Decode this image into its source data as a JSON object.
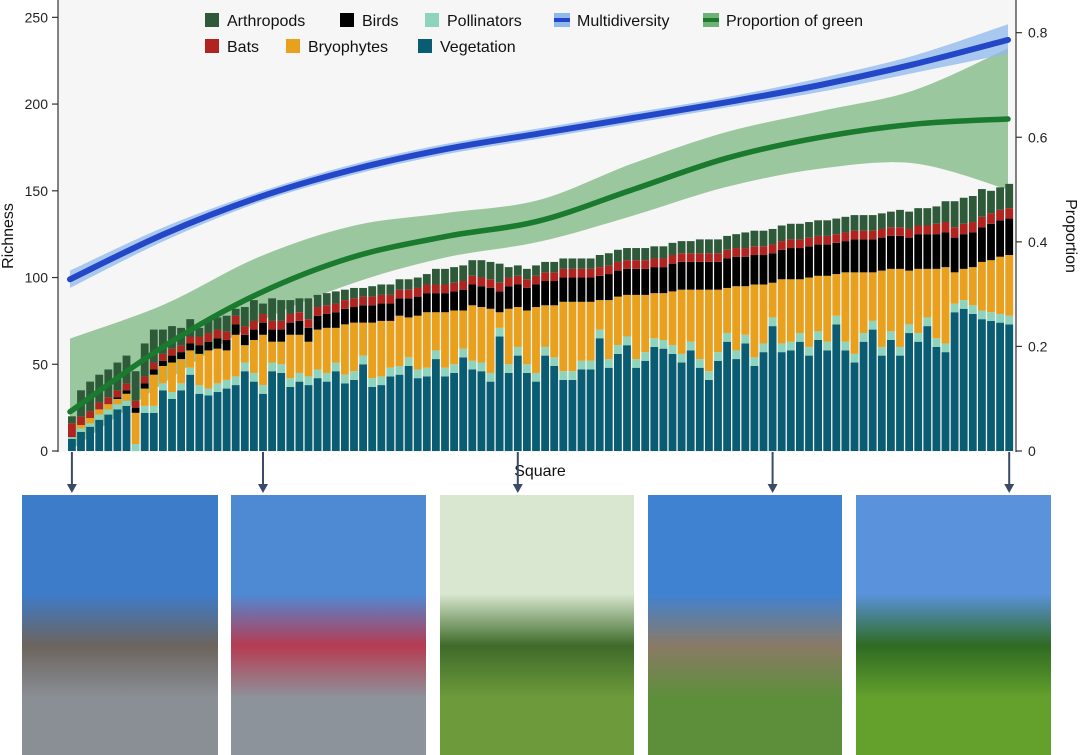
{
  "chart_data": {
    "type": "bar",
    "x_label": "Square",
    "y_label": "Richness",
    "y2_label": "Proportion",
    "y_ticks": [
      0,
      50,
      100,
      150,
      200,
      250
    ],
    "y2_ticks": [
      "0",
      "0.2",
      "0.4",
      "0.6",
      "0.8"
    ],
    "ylim": [
      0,
      260
    ],
    "y2lim": [
      0,
      0.8625
    ],
    "stack_order": [
      "Vegetation",
      "Pollinators",
      "Bryophytes",
      "Birds",
      "Bats",
      "Arthropods"
    ],
    "legend": [
      {
        "name": "Arthropods",
        "color": "#2f5a3a",
        "kind": "square"
      },
      {
        "name": "Birds",
        "color": "#000000",
        "kind": "square"
      },
      {
        "name": "Pollinators",
        "color": "#8ed4bd",
        "kind": "square"
      },
      {
        "name": "Multidiversity",
        "color": "#2447c8",
        "kind": "line"
      },
      {
        "name": "Proportion of green",
        "color": "#1a7a2e",
        "kind": "line"
      },
      {
        "name": "Bats",
        "color": "#b0231f",
        "kind": "square"
      },
      {
        "name": "Bryophytes",
        "color": "#e9a01d",
        "kind": "square"
      },
      {
        "name": "Vegetation",
        "color": "#0a5c73",
        "kind": "square"
      }
    ],
    "series": [
      {
        "name": "Vegetation",
        "color": "#0a5c73",
        "values": [
          7,
          11,
          14,
          18,
          21,
          24,
          26,
          0,
          22,
          22,
          35,
          30,
          35,
          44,
          33,
          32,
          34,
          36,
          38,
          46,
          40,
          33,
          46,
          45,
          37,
          40,
          38,
          42,
          40,
          46,
          39,
          41,
          50,
          37,
          38,
          43,
          44,
          49,
          42,
          43,
          53,
          43,
          45,
          54,
          47,
          46,
          40,
          66,
          45,
          55,
          45,
          40,
          55,
          49,
          41,
          41,
          47,
          47,
          65,
          48,
          56,
          61,
          48,
          52,
          60,
          59,
          56,
          51,
          58,
          48,
          41,
          52,
          63,
          53,
          62,
          49,
          57,
          72,
          57,
          58,
          63,
          55,
          64,
          58,
          73,
          58,
          51,
          63,
          70,
          55,
          64,
          55,
          68,
          63,
          72,
          60,
          57,
          80,
          82,
          79,
          76,
          75,
          74,
          73
        ]
      },
      {
        "name": "Pollinators",
        "color": "#8ed4bd",
        "values": [
          1,
          2,
          2,
          3,
          3,
          3,
          3,
          4,
          4,
          4,
          4,
          4,
          4,
          4,
          5,
          4,
          5,
          5,
          5,
          5,
          5,
          5,
          5,
          5,
          5,
          5,
          5,
          5,
          5,
          5,
          5,
          5,
          5,
          5,
          5,
          5,
          5,
          5,
          5,
          5,
          5,
          5,
          5,
          5,
          5,
          5,
          5,
          5,
          5,
          5,
          5,
          5,
          5,
          5,
          5,
          5,
          5,
          5,
          5,
          5,
          5,
          5,
          5,
          5,
          5,
          5,
          5,
          5,
          5,
          5,
          5,
          5,
          5,
          5,
          5,
          5,
          5,
          5,
          5,
          5,
          5,
          5,
          5,
          5,
          5,
          5,
          5,
          5,
          5,
          5,
          5,
          5,
          5,
          5,
          5,
          5,
          5,
          5,
          5,
          5,
          5,
          5,
          5,
          5
        ]
      },
      {
        "name": "Bryophytes",
        "color": "#e9a01d",
        "values": [
          0,
          2,
          3,
          3,
          3,
          3,
          4,
          18,
          10,
          18,
          10,
          17,
          14,
          10,
          18,
          22,
          20,
          17,
          24,
          10,
          19,
          29,
          12,
          13,
          25,
          22,
          20,
          23,
          26,
          20,
          29,
          28,
          19,
          32,
          32,
          27,
          29,
          23,
          31,
          32,
          22,
          32,
          31,
          22,
          32,
          32,
          37,
          9,
          32,
          23,
          31,
          38,
          24,
          30,
          40,
          40,
          34,
          34,
          17,
          34,
          28,
          24,
          37,
          33,
          26,
          27,
          31,
          37,
          30,
          40,
          47,
          36,
          26,
          37,
          28,
          42,
          34,
          20,
          37,
          36,
          31,
          40,
          32,
          38,
          24,
          40,
          47,
          35,
          28,
          44,
          36,
          45,
          31,
          37,
          28,
          40,
          44,
          18,
          18,
          22,
          28,
          30,
          33,
          35
        ]
      },
      {
        "name": "Birds",
        "color": "#000000",
        "values": [
          0,
          0,
          0,
          0,
          0,
          1,
          2,
          3,
          3,
          3,
          3,
          4,
          4,
          4,
          5,
          5,
          6,
          6,
          6,
          6,
          6,
          7,
          7,
          7,
          7,
          8,
          8,
          8,
          8,
          9,
          9,
          9,
          10,
          10,
          10,
          10,
          10,
          11,
          11,
          11,
          11,
          11,
          11,
          12,
          12,
          12,
          12,
          12,
          13,
          13,
          13,
          13,
          14,
          14,
          14,
          14,
          14,
          14,
          14,
          15,
          15,
          15,
          15,
          15,
          15,
          15,
          16,
          16,
          16,
          16,
          16,
          16,
          17,
          17,
          17,
          17,
          17,
          17,
          17,
          18,
          18,
          18,
          18,
          18,
          18,
          18,
          19,
          19,
          19,
          19,
          19,
          19,
          19,
          20,
          20,
          20,
          20,
          20,
          20,
          20,
          20,
          21,
          21,
          21
        ]
      },
      {
        "name": "Bats",
        "color": "#b0231f",
        "values": [
          8,
          5,
          4,
          4,
          4,
          4,
          4,
          4,
          4,
          4,
          4,
          4,
          4,
          4,
          5,
          5,
          5,
          5,
          5,
          5,
          5,
          5,
          5,
          5,
          5,
          5,
          5,
          5,
          5,
          5,
          5,
          5,
          5,
          5,
          5,
          5,
          5,
          5,
          5,
          5,
          5,
          5,
          5,
          5,
          5,
          5,
          5,
          5,
          5,
          5,
          5,
          5,
          5,
          5,
          5,
          5,
          5,
          5,
          5,
          5,
          5,
          5,
          5,
          5,
          5,
          5,
          5,
          5,
          5,
          5,
          5,
          5,
          5,
          5,
          5,
          5,
          5,
          5,
          5,
          5,
          5,
          5,
          5,
          5,
          5,
          5,
          5,
          5,
          5,
          5,
          5,
          5,
          5,
          5,
          5,
          6,
          6,
          6,
          6,
          6,
          6,
          6,
          6,
          6
        ]
      },
      {
        "name": "Arthropods",
        "color": "#2f5a3a",
        "values": [
          4,
          15,
          17,
          16,
          16,
          16,
          16,
          17,
          19,
          19,
          14,
          13,
          10,
          10,
          5,
          8,
          7,
          9,
          4,
          11,
          12,
          6,
          13,
          12,
          8,
          8,
          12,
          7,
          7,
          7,
          6,
          6,
          5,
          6,
          6,
          6,
          6,
          6,
          6,
          6,
          9,
          9,
          9,
          9,
          9,
          10,
          10,
          11,
          6,
          6,
          6,
          6,
          6,
          6,
          6,
          6,
          6,
          6,
          7,
          7,
          7,
          7,
          7,
          7,
          7,
          7,
          7,
          7,
          7,
          8,
          8,
          8,
          8,
          8,
          9,
          9,
          9,
          9,
          9,
          9,
          9,
          9,
          9,
          9,
          9,
          9,
          9,
          9,
          9,
          9,
          9,
          10,
          10,
          10,
          10,
          10,
          12,
          15,
          15,
          15,
          16,
          13,
          13,
          14
        ]
      }
    ],
    "multidiversity": {
      "name": "Multidiversity",
      "color": "#2447c8",
      "x": [
        0,
        0.1,
        0.2,
        0.3,
        0.4,
        0.5,
        0.6,
        0.7,
        0.8,
        0.9,
        1.0
      ],
      "y": [
        99,
        125,
        146,
        162,
        174,
        183,
        192,
        201,
        211,
        223,
        237
      ],
      "lower": [
        94,
        121,
        143,
        159,
        171,
        180,
        189,
        198,
        207,
        218,
        229
      ],
      "upper": [
        104,
        129,
        149,
        165,
        177,
        186,
        195,
        204,
        215,
        228,
        246
      ]
    },
    "proportion_green": {
      "name": "Proportion of green",
      "color": "#1a7a2e",
      "x": [
        0,
        0.1,
        0.2,
        0.3,
        0.4,
        0.5,
        0.6,
        0.7,
        0.8,
        0.9,
        1.0
      ],
      "y": [
        0.075,
        0.2,
        0.3,
        0.37,
        0.41,
        0.44,
        0.5,
        0.56,
        0.6,
        0.625,
        0.635
      ],
      "lower": [
        0.0,
        0.13,
        0.245,
        0.32,
        0.37,
        0.4,
        0.45,
        0.505,
        0.54,
        0.55,
        0.5
      ],
      "upper": [
        0.215,
        0.28,
        0.37,
        0.43,
        0.455,
        0.48,
        0.55,
        0.61,
        0.65,
        0.69,
        0.77
      ]
    }
  },
  "photos": [
    {
      "name": "photo-town-hall-square",
      "sky": "#3d7cc9",
      "ground": "#8a8f96",
      "accent": "#6c645d",
      "square_index": 0
    },
    {
      "name": "photo-market-square",
      "sky": "#4e8ad4",
      "ground": "#8d939b",
      "accent": "#b63b52",
      "square_index": 21
    },
    {
      "name": "photo-tree-avenue",
      "sky": "#d9e7d0",
      "ground": "#6d9a3a",
      "accent": "#3e6b2a",
      "square_index": 49
    },
    {
      "name": "photo-church-garden",
      "sky": "#3f82d1",
      "ground": "#5d8f3a",
      "accent": "#8a7a66",
      "square_index": 77
    },
    {
      "name": "photo-green-meadow",
      "sky": "#5a92dc",
      "ground": "#63a02c",
      "accent": "#2f6b22",
      "square_index": 103
    }
  ]
}
